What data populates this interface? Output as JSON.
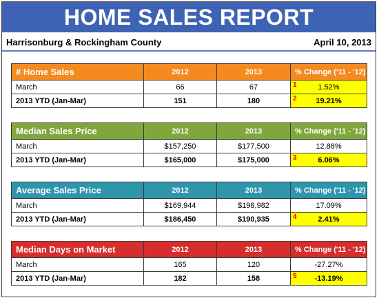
{
  "title": "HOME SALES REPORT",
  "region": "Harrisonburg & Rockingham County",
  "date": "April 10, 2013",
  "column_headers": [
    "2012",
    "2013",
    "% Change ('11 - '12)"
  ],
  "sections": [
    {
      "heading": "# Home Sales",
      "color": "#f58a1f",
      "rows": [
        {
          "label": "March",
          "v2012": "66",
          "v2013": "67",
          "change": "1.52%",
          "highlight": true,
          "marker": "1"
        },
        {
          "label": "2013 YTD (Jan-Mar)",
          "v2012": "151",
          "v2013": "180",
          "change": "19.21%",
          "highlight": true,
          "marker": "2"
        }
      ]
    },
    {
      "heading": "Median Sales Price",
      "color": "#7fa73c",
      "rows": [
        {
          "label": "March",
          "v2012": "$157,250",
          "v2013": "$177,500",
          "change": "12.88%",
          "highlight": false,
          "marker": ""
        },
        {
          "label": "2013 YTD (Jan-Mar)",
          "v2012": "$165,000",
          "v2013": "$175,000",
          "change": "6.06%",
          "highlight": true,
          "marker": "3"
        }
      ]
    },
    {
      "heading": "Average Sales Price",
      "color": "#2f95ad",
      "rows": [
        {
          "label": "March",
          "v2012": "$169,944",
          "v2013": "$198,982",
          "change": "17.09%",
          "highlight": false,
          "marker": ""
        },
        {
          "label": "2013 YTD (Jan-Mar)",
          "v2012": "$186,450",
          "v2013": "$190,935",
          "change": "2.41%",
          "highlight": true,
          "marker": "4"
        }
      ]
    },
    {
      "heading": "Median Days on Market",
      "color": "#d62d2d",
      "rows": [
        {
          "label": "March",
          "v2012": "165",
          "v2013": "120",
          "change": "-27.27%",
          "highlight": false,
          "marker": ""
        },
        {
          "label": "2013 YTD (Jan-Mar)",
          "v2012": "182",
          "v2013": "158",
          "change": "-13.19%",
          "highlight": true,
          "marker": "5"
        }
      ]
    }
  ]
}
